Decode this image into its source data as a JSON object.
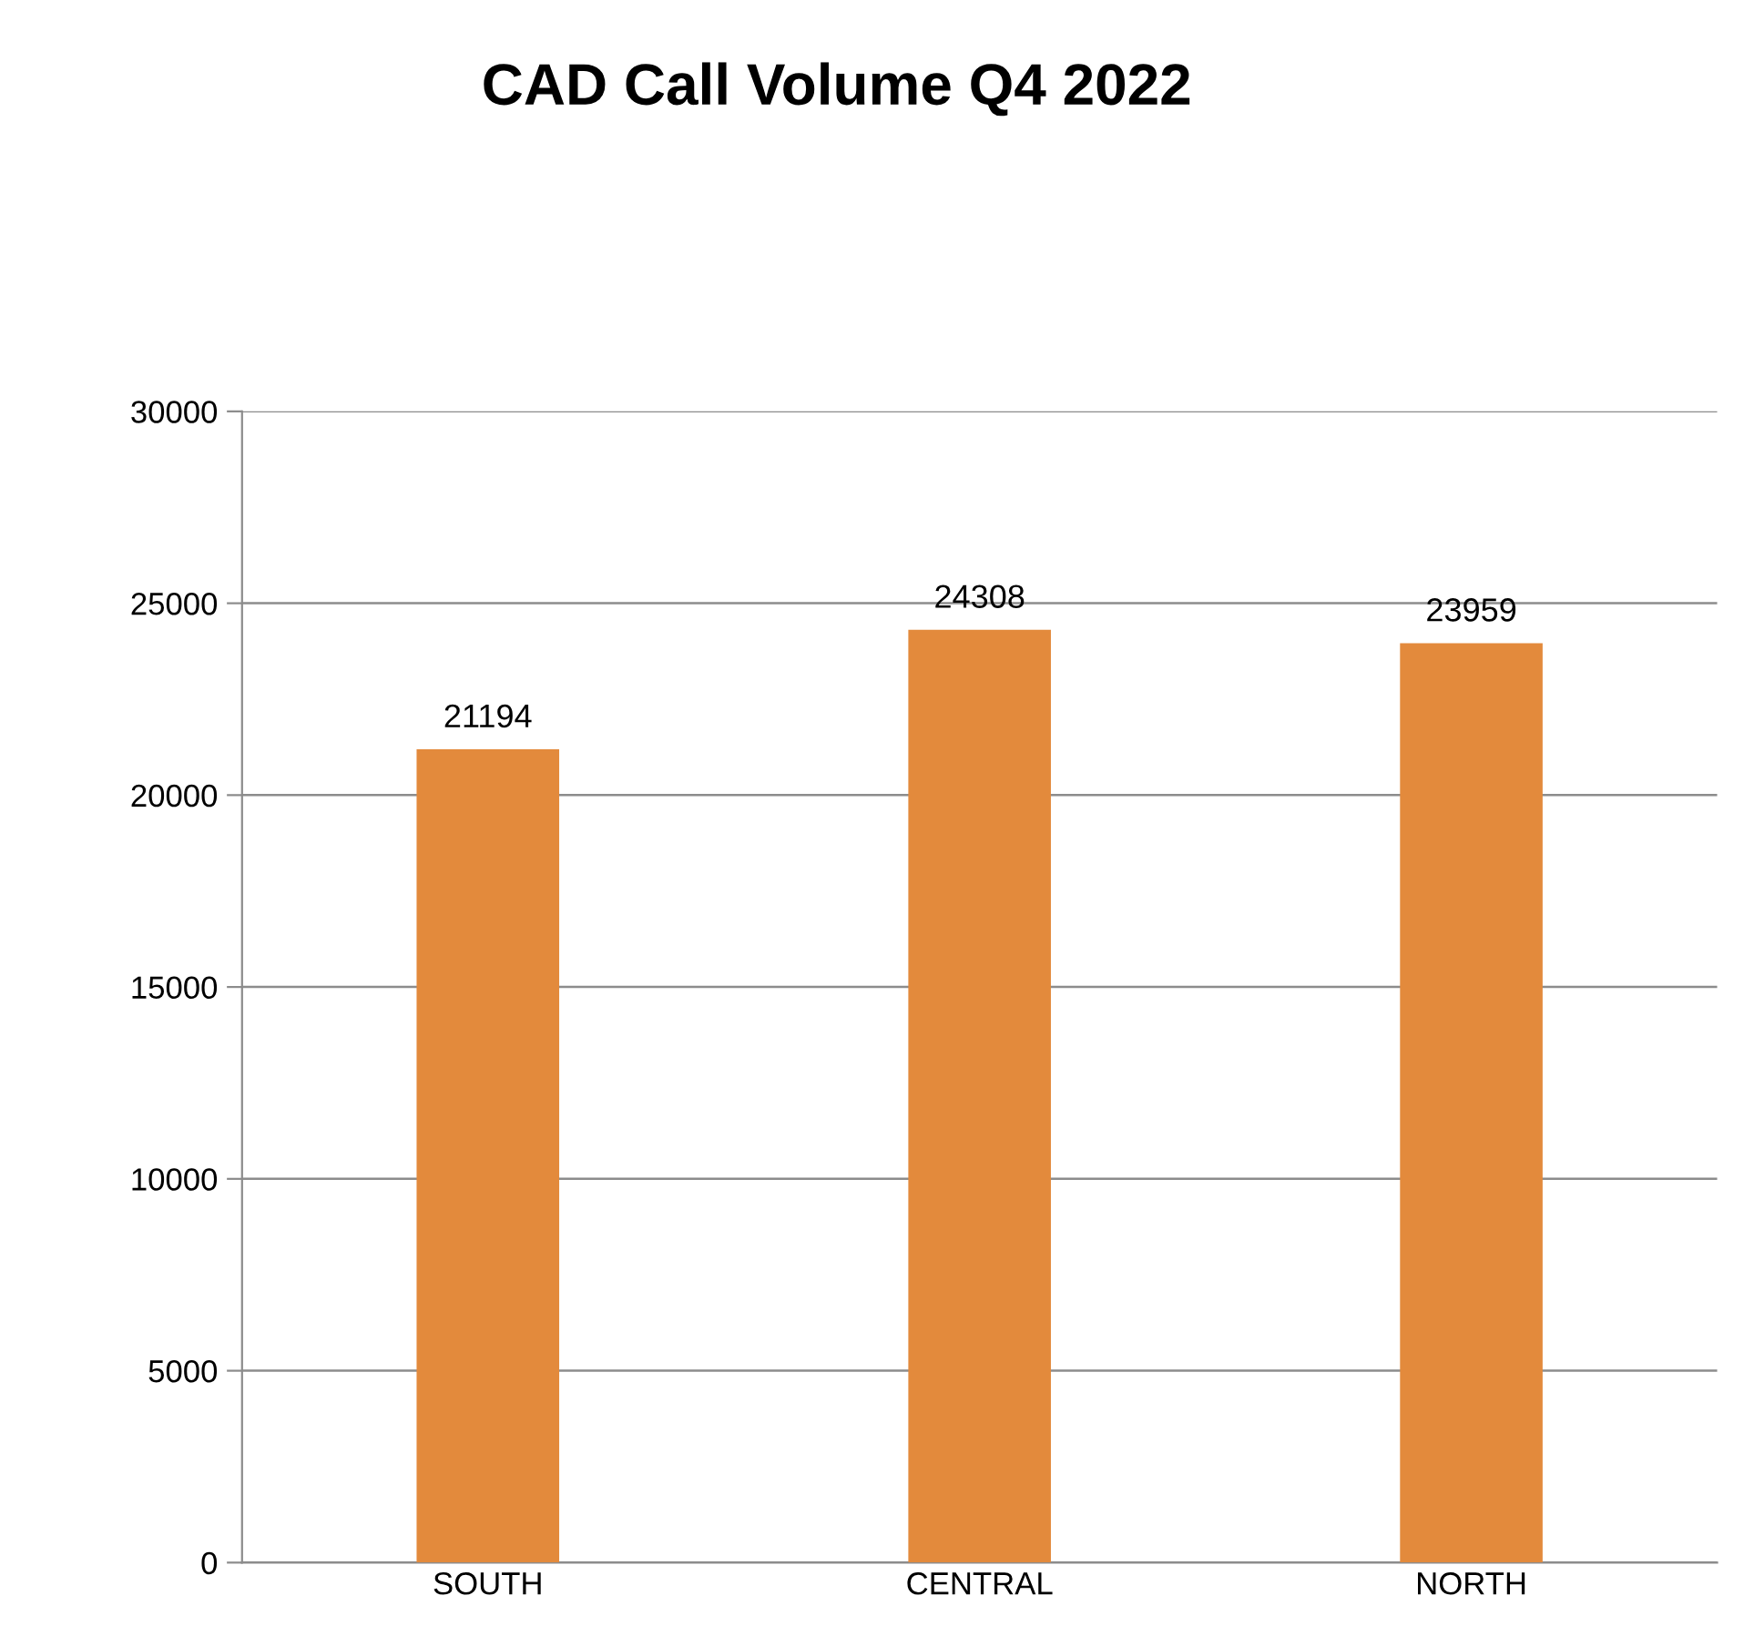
{
  "chart_data": {
    "type": "bar",
    "title": "CAD Call Volume Q4 2022",
    "categories": [
      "SOUTH",
      "CENTRAL",
      "NORTH"
    ],
    "values": [
      21194,
      24308,
      23959
    ],
    "color": "#e38a3c",
    "ylim": [
      0,
      30000
    ],
    "yticks": [
      0,
      5000,
      10000,
      15000,
      20000,
      25000,
      30000
    ],
    "grid": "y",
    "data_labels": true,
    "legend": false
  }
}
